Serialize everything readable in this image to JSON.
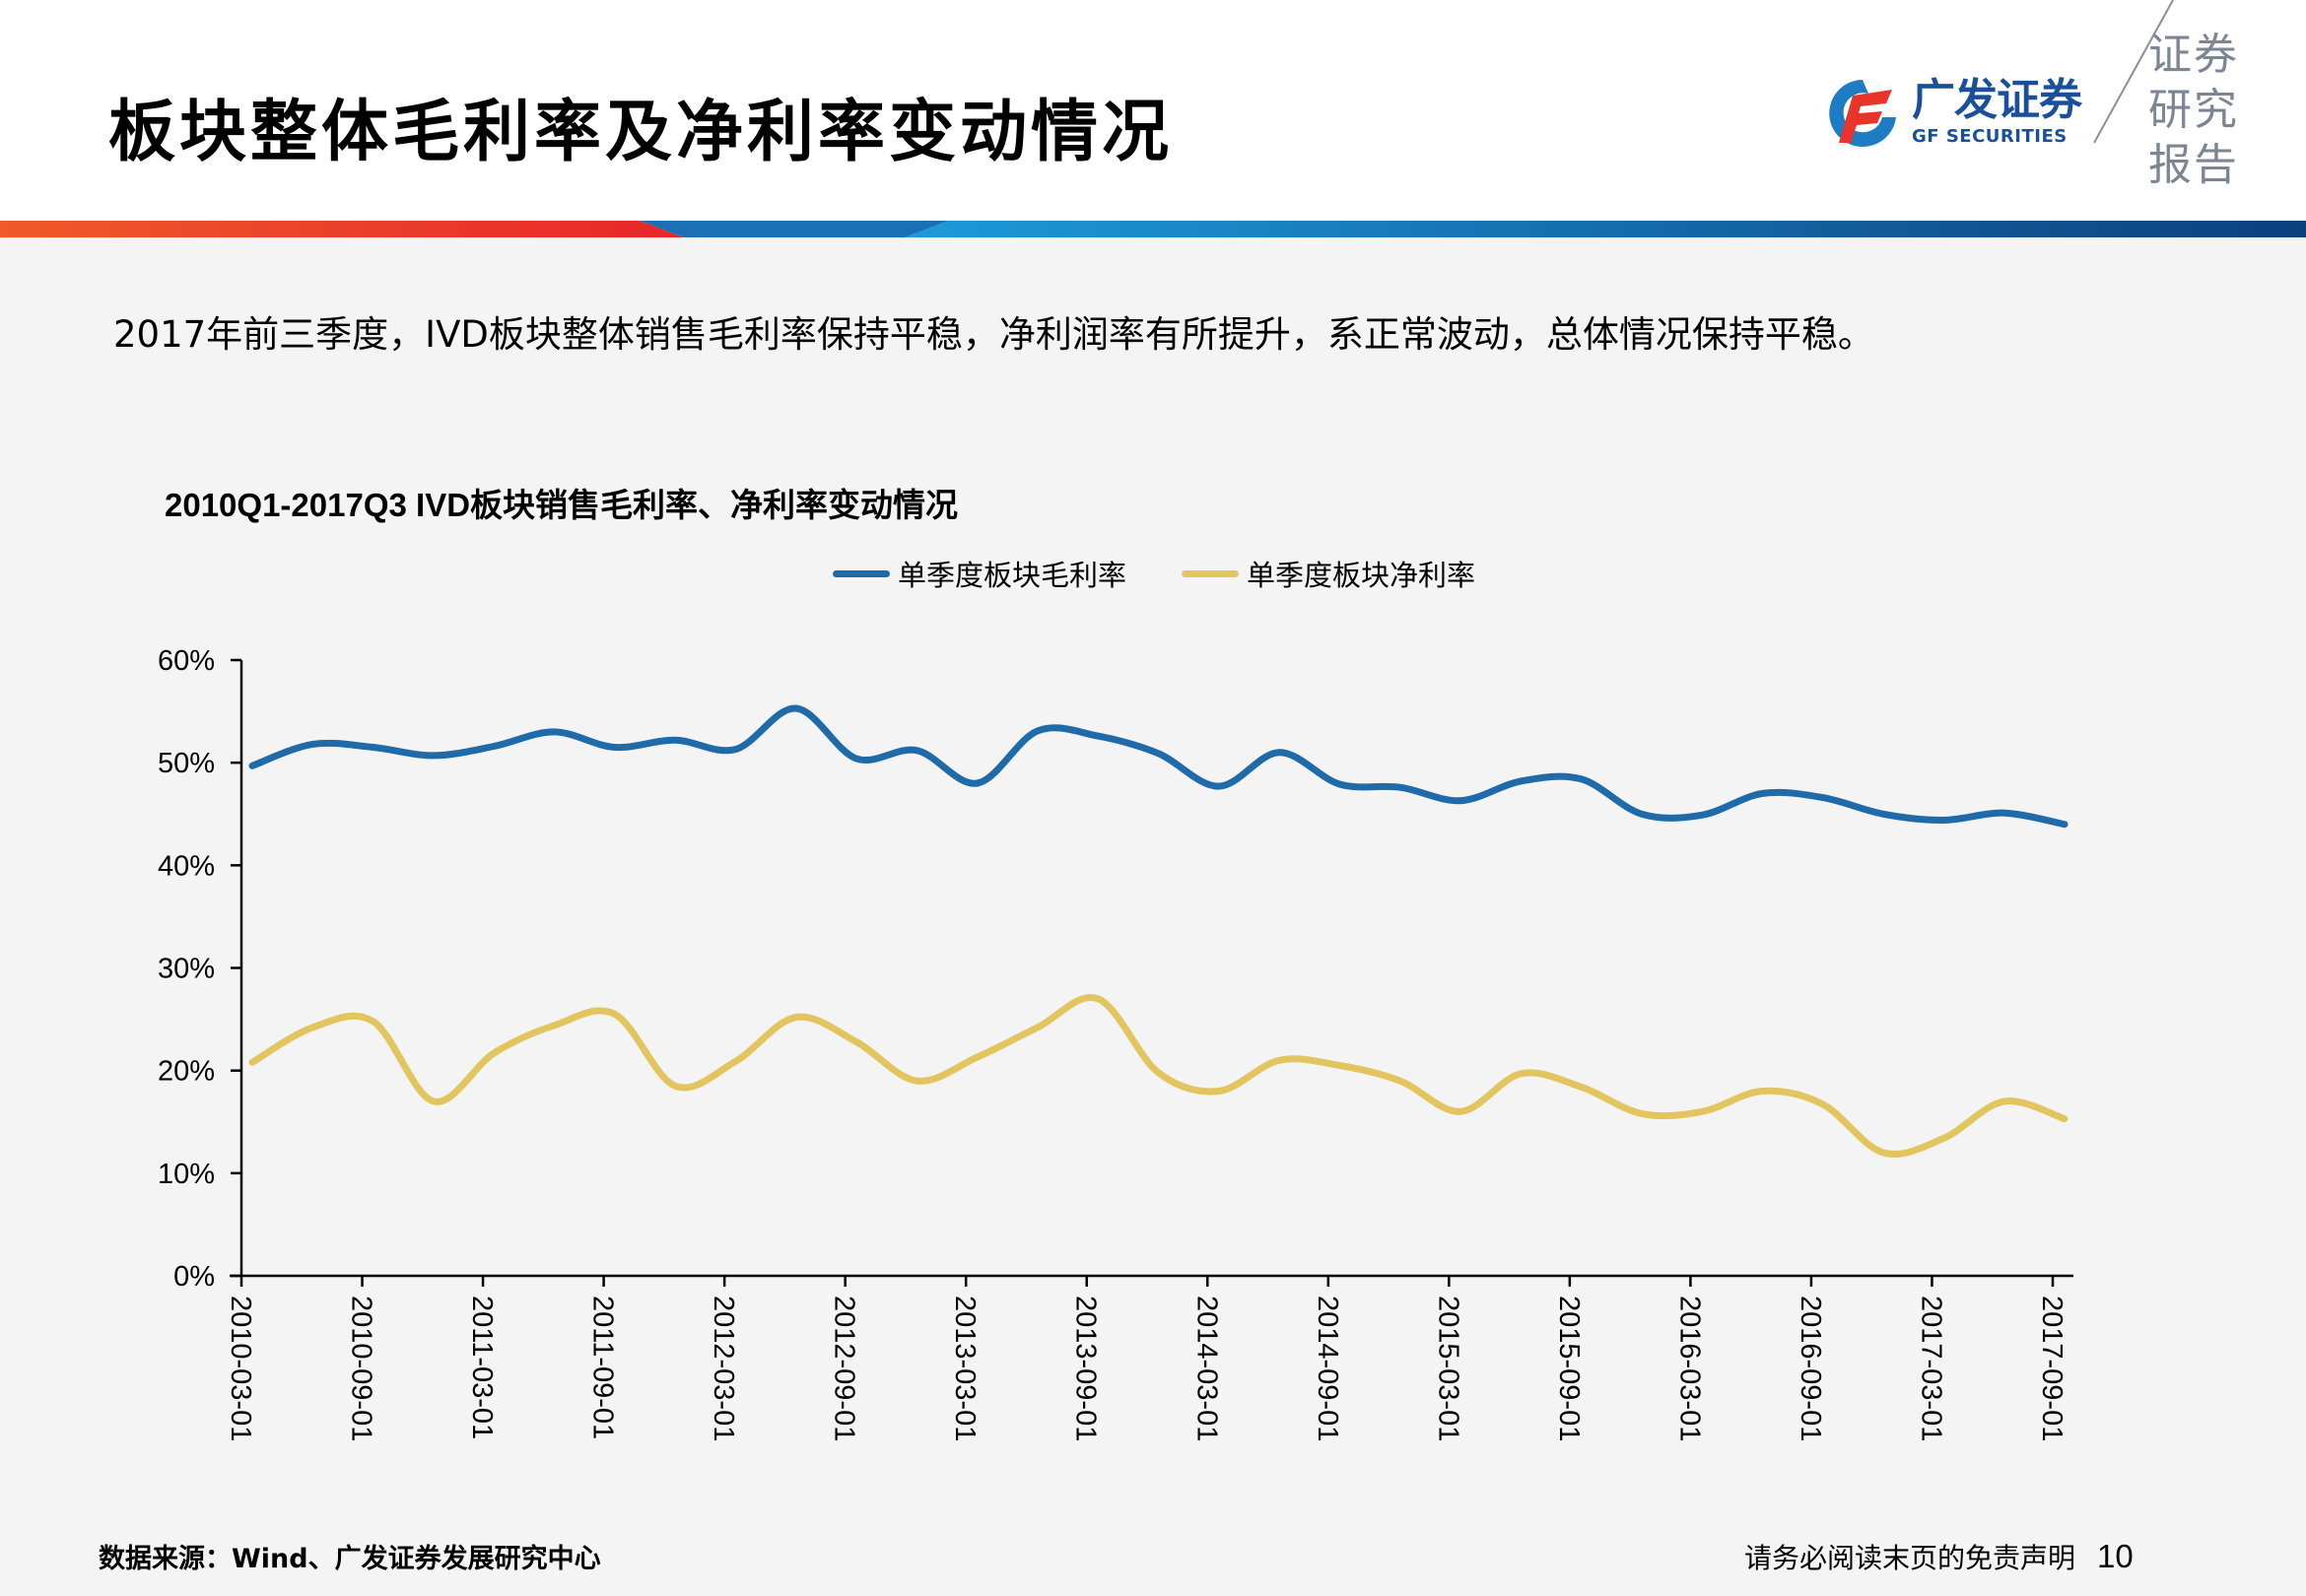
{
  "header": {
    "title": "板块整体毛利率及净利率变动情况",
    "logo": {
      "name_cn": "广发证券",
      "name_en": "GF SECURITIES",
      "tag_lines": [
        "证券",
        "研究",
        "报告"
      ]
    },
    "band_colors": {
      "red": "#e8262a",
      "orange": "#ee5a2a",
      "blue": "#1b6fb5",
      "navy": "#0c3f7e",
      "light_blue": "#1e9ad9"
    }
  },
  "summary": "2017年前三季度，IVD板块整体销售毛利率保持平稳，净利润率有所提升，系正常波动，总体情况保持平稳。",
  "chart_data": {
    "type": "line",
    "title": "2010Q1-2017Q3 IVD板块销售毛利率、净利率变动情况",
    "xlabel": "",
    "ylabel": "",
    "ylim": [
      0,
      60
    ],
    "yticks": [
      "0%",
      "10%",
      "20%",
      "30%",
      "40%",
      "50%",
      "60%"
    ],
    "xtick_labels": [
      "2010-03-01",
      "2010-09-01",
      "2011-03-01",
      "2011-09-01",
      "2012-03-01",
      "2012-09-01",
      "2013-03-01",
      "2013-09-01",
      "2014-03-01",
      "2014-09-01",
      "2015-03-01",
      "2015-09-01",
      "2016-03-01",
      "2016-09-01",
      "2017-03-01",
      "2017-09-01"
    ],
    "x": [
      "2010Q1",
      "2010Q2",
      "2010Q3",
      "2010Q4",
      "2011Q1",
      "2011Q2",
      "2011Q3",
      "2011Q4",
      "2012Q1",
      "2012Q2",
      "2012Q3",
      "2012Q4",
      "2013Q1",
      "2013Q2",
      "2013Q3",
      "2013Q4",
      "2014Q1",
      "2014Q2",
      "2014Q3",
      "2014Q4",
      "2015Q1",
      "2015Q2",
      "2015Q3",
      "2015Q4",
      "2016Q1",
      "2016Q2",
      "2016Q3",
      "2016Q4",
      "2017Q1",
      "2017Q2",
      "2017Q3"
    ],
    "grid": false,
    "legend_position": "top-center",
    "series": [
      {
        "name": "单季度板块毛利率",
        "color": "#1f6aa8",
        "values": [
          49.7,
          51.8,
          51.5,
          50.7,
          51.6,
          53.0,
          51.5,
          52.2,
          51.3,
          55.3,
          50.4,
          51.2,
          48.0,
          53.1,
          52.6,
          50.9,
          47.7,
          51.0,
          47.9,
          47.6,
          46.3,
          48.2,
          48.4,
          45.0,
          44.9,
          47.0,
          46.6,
          45.0,
          44.4,
          45.1,
          44.0
        ]
      },
      {
        "name": "单季度板块净利率",
        "color": "#e2c55e",
        "values": [
          20.8,
          24.2,
          24.8,
          17.0,
          21.7,
          24.4,
          25.5,
          18.5,
          20.9,
          25.2,
          22.8,
          19.0,
          21.3,
          24.2,
          27.0,
          19.8,
          18.0,
          21.0,
          20.5,
          19.0,
          16.0,
          19.7,
          18.4,
          15.8,
          16.0,
          18.0,
          16.7,
          12.0,
          13.4,
          17.0,
          15.3
        ]
      }
    ]
  },
  "footer": {
    "source": "数据来源：Wind、广发证券发展研究中心",
    "disclaimer": "请务必阅读末页的免责声明",
    "page_number": "10"
  }
}
